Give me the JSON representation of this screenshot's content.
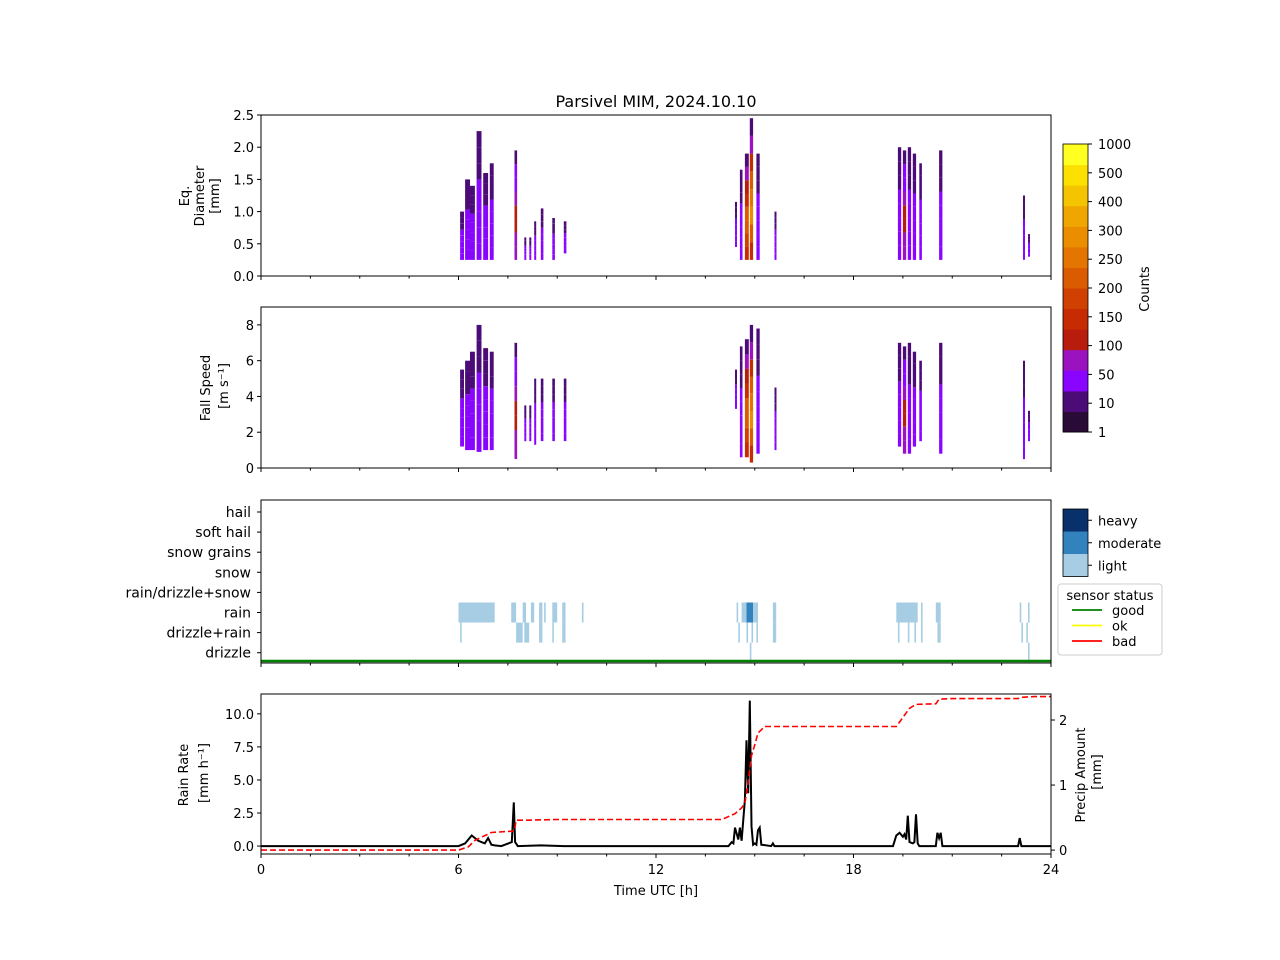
{
  "title": "Parsivel MIM, 2024.10.10",
  "x_axis": {
    "label": "Time UTC [h]",
    "ticks": [
      "0",
      "6",
      "12",
      "18",
      "24"
    ],
    "range": [
      0,
      24
    ]
  },
  "colorbar": {
    "label": "Counts",
    "ticks": [
      "1",
      "10",
      "50",
      "100",
      "150",
      "200",
      "250",
      "300",
      "400",
      "500",
      "1000"
    ],
    "colors": [
      "#2a0a36",
      "#4c0c78",
      "#8a05ff",
      "#9b12c0",
      "#b81c0c",
      "#c62b02",
      "#d04000",
      "#db5b00",
      "#e37500",
      "#ea8e00",
      "#efa600",
      "#f5c400",
      "#fbe000",
      "#ffff22"
    ]
  },
  "intensity_legend": {
    "labels": [
      "heavy",
      "moderate",
      "light"
    ],
    "colors": [
      "#08306b",
      "#3182bd",
      "#a6cde3"
    ]
  },
  "sensor_status_legend": {
    "title": "sensor status",
    "items": [
      {
        "label": "good",
        "color": "#008000"
      },
      {
        "label": "ok",
        "color": "#ffff00"
      },
      {
        "label": "bad",
        "color": "#ff0000"
      }
    ]
  },
  "chart_data": [
    {
      "type": "heatmap",
      "panel": "diameter",
      "ylabel": [
        "Eq.",
        "Diameter",
        "[mm]"
      ],
      "y_ticks": [
        "0.0",
        "0.5",
        "1.0",
        "1.5",
        "2.0",
        "2.5"
      ],
      "ylim": [
        0,
        2.5
      ],
      "xlim": [
        0,
        24
      ],
      "events": [
        {
          "t": 6.05,
          "w": 0.12,
          "lo": 0.25,
          "hi": 1.0,
          "peak": 10
        },
        {
          "t": 6.2,
          "w": 0.15,
          "lo": 0.25,
          "hi": 1.5,
          "peak": 10
        },
        {
          "t": 6.35,
          "w": 0.15,
          "lo": 0.25,
          "hi": 1.4,
          "peak": 10
        },
        {
          "t": 6.55,
          "w": 0.15,
          "lo": 0.25,
          "hi": 2.25,
          "peak": 10
        },
        {
          "t": 6.75,
          "w": 0.15,
          "lo": 0.25,
          "hi": 1.6,
          "peak": 10
        },
        {
          "t": 6.95,
          "w": 0.12,
          "lo": 0.25,
          "hi": 1.75,
          "peak": 10
        },
        {
          "t": 7.7,
          "w": 0.08,
          "lo": 0.25,
          "hi": 1.95,
          "peak": 50
        },
        {
          "t": 8.0,
          "w": 0.06,
          "lo": 0.25,
          "hi": 0.6,
          "peak": 10
        },
        {
          "t": 8.15,
          "w": 0.06,
          "lo": 0.25,
          "hi": 0.6,
          "peak": 10
        },
        {
          "t": 8.3,
          "w": 0.06,
          "lo": 0.25,
          "hi": 0.85,
          "peak": 10
        },
        {
          "t": 8.5,
          "w": 0.08,
          "lo": 0.25,
          "hi": 1.05,
          "peak": 10
        },
        {
          "t": 8.85,
          "w": 0.08,
          "lo": 0.25,
          "hi": 0.9,
          "peak": 10
        },
        {
          "t": 9.2,
          "w": 0.08,
          "lo": 0.35,
          "hi": 0.85,
          "peak": 10
        },
        {
          "t": 14.4,
          "w": 0.05,
          "lo": 0.45,
          "hi": 1.15,
          "peak": 10
        },
        {
          "t": 14.55,
          "w": 0.08,
          "lo": 0.25,
          "hi": 1.65,
          "peak": 10
        },
        {
          "t": 14.7,
          "w": 0.12,
          "lo": 0.25,
          "hi": 1.9,
          "peak": 300
        },
        {
          "t": 14.85,
          "w": 0.1,
          "lo": 0.25,
          "hi": 2.45,
          "peak": 500
        },
        {
          "t": 15.05,
          "w": 0.1,
          "lo": 0.25,
          "hi": 1.9,
          "peak": 10
        },
        {
          "t": 15.6,
          "w": 0.05,
          "lo": 0.25,
          "hi": 1.0,
          "peak": 10
        },
        {
          "t": 19.35,
          "w": 0.1,
          "lo": 0.25,
          "hi": 2.0,
          "peak": 10
        },
        {
          "t": 19.5,
          "w": 0.1,
          "lo": 0.25,
          "hi": 1.95,
          "peak": 50
        },
        {
          "t": 19.65,
          "w": 0.1,
          "lo": 0.25,
          "hi": 2.0,
          "peak": 10
        },
        {
          "t": 19.8,
          "w": 0.1,
          "lo": 0.25,
          "hi": 1.9,
          "peak": 10
        },
        {
          "t": 20.0,
          "w": 0.08,
          "lo": 0.25,
          "hi": 1.75,
          "peak": 10
        },
        {
          "t": 20.6,
          "w": 0.1,
          "lo": 0.25,
          "hi": 1.95,
          "peak": 10
        },
        {
          "t": 23.15,
          "w": 0.05,
          "lo": 0.25,
          "hi": 1.25,
          "peak": 10
        },
        {
          "t": 23.3,
          "w": 0.05,
          "lo": 0.3,
          "hi": 0.65,
          "peak": 10
        }
      ]
    },
    {
      "type": "heatmap",
      "panel": "fall_speed",
      "ylabel": [
        "Fall Speed",
        "[m s⁻¹]"
      ],
      "y_ticks": [
        "0",
        "2",
        "4",
        "6",
        "8"
      ],
      "ylim": [
        0,
        9
      ],
      "xlim": [
        0,
        24
      ],
      "events": [
        {
          "t": 6.05,
          "w": 0.12,
          "lo": 1.2,
          "hi": 5.5,
          "peak": 10
        },
        {
          "t": 6.2,
          "w": 0.15,
          "lo": 1.0,
          "hi": 6.0,
          "peak": 10
        },
        {
          "t": 6.35,
          "w": 0.15,
          "lo": 1.0,
          "hi": 6.5,
          "peak": 10
        },
        {
          "t": 6.55,
          "w": 0.15,
          "lo": 0.9,
          "hi": 8.0,
          "peak": 10
        },
        {
          "t": 6.75,
          "w": 0.15,
          "lo": 1.0,
          "hi": 6.7,
          "peak": 10
        },
        {
          "t": 6.95,
          "w": 0.12,
          "lo": 1.0,
          "hi": 6.5,
          "peak": 10
        },
        {
          "t": 7.7,
          "w": 0.08,
          "lo": 0.5,
          "hi": 7.0,
          "peak": 50
        },
        {
          "t": 8.0,
          "w": 0.06,
          "lo": 1.5,
          "hi": 3.5,
          "peak": 10
        },
        {
          "t": 8.15,
          "w": 0.06,
          "lo": 1.5,
          "hi": 3.5,
          "peak": 10
        },
        {
          "t": 8.3,
          "w": 0.06,
          "lo": 1.3,
          "hi": 5.0,
          "peak": 10
        },
        {
          "t": 8.5,
          "w": 0.08,
          "lo": 1.5,
          "hi": 5.0,
          "peak": 10
        },
        {
          "t": 8.85,
          "w": 0.08,
          "lo": 1.5,
          "hi": 5.0,
          "peak": 10
        },
        {
          "t": 9.2,
          "w": 0.08,
          "lo": 1.5,
          "hi": 5.0,
          "peak": 10
        },
        {
          "t": 14.4,
          "w": 0.05,
          "lo": 3.3,
          "hi": 5.5,
          "peak": 10
        },
        {
          "t": 14.55,
          "w": 0.08,
          "lo": 0.6,
          "hi": 6.8,
          "peak": 10
        },
        {
          "t": 14.7,
          "w": 0.12,
          "lo": 0.6,
          "hi": 7.2,
          "peak": 300
        },
        {
          "t": 14.85,
          "w": 0.1,
          "lo": 0.3,
          "hi": 8.0,
          "peak": 500
        },
        {
          "t": 15.05,
          "w": 0.1,
          "lo": 0.8,
          "hi": 7.8,
          "peak": 10
        },
        {
          "t": 15.6,
          "w": 0.05,
          "lo": 1.0,
          "hi": 4.5,
          "peak": 10
        },
        {
          "t": 19.35,
          "w": 0.1,
          "lo": 1.2,
          "hi": 7.0,
          "peak": 10
        },
        {
          "t": 19.5,
          "w": 0.1,
          "lo": 0.8,
          "hi": 6.8,
          "peak": 50
        },
        {
          "t": 19.65,
          "w": 0.1,
          "lo": 0.8,
          "hi": 7.0,
          "peak": 10
        },
        {
          "t": 19.8,
          "w": 0.1,
          "lo": 1.2,
          "hi": 6.5,
          "peak": 10
        },
        {
          "t": 20.0,
          "w": 0.08,
          "lo": 1.5,
          "hi": 6.0,
          "peak": 10
        },
        {
          "t": 20.6,
          "w": 0.1,
          "lo": 0.8,
          "hi": 7.0,
          "peak": 10
        },
        {
          "t": 23.15,
          "w": 0.05,
          "lo": 0.5,
          "hi": 6.0,
          "peak": 10
        },
        {
          "t": 23.3,
          "w": 0.05,
          "lo": 1.5,
          "hi": 3.2,
          "peak": 10
        }
      ]
    },
    {
      "type": "heatmap",
      "panel": "precip_type",
      "y_categories": [
        "hail",
        "soft hail",
        "snow grains",
        "snow",
        "rain/drizzle+snow",
        "rain",
        "drizzle+rain",
        "drizzle"
      ],
      "xlim": [
        0,
        24
      ],
      "rain": [
        [
          6.0,
          7.1,
          "light"
        ],
        [
          7.6,
          7.75,
          "light"
        ],
        [
          7.95,
          8.05,
          "light"
        ],
        [
          8.2,
          8.3,
          "light"
        ],
        [
          8.45,
          8.55,
          "light"
        ],
        [
          8.6,
          8.65,
          "light"
        ],
        [
          8.85,
          9.0,
          "light"
        ],
        [
          9.15,
          9.25,
          "light"
        ],
        [
          9.75,
          9.8,
          "light"
        ],
        [
          14.45,
          14.5,
          "light"
        ],
        [
          14.6,
          14.75,
          "light"
        ],
        [
          14.75,
          14.95,
          "moderate"
        ],
        [
          14.95,
          15.1,
          "light"
        ],
        [
          15.55,
          15.65,
          "light"
        ],
        [
          19.3,
          19.95,
          "light"
        ],
        [
          20.05,
          20.1,
          "light"
        ],
        [
          20.5,
          20.65,
          "light"
        ],
        [
          23.05,
          23.1,
          "light"
        ],
        [
          23.3,
          23.35,
          "light"
        ]
      ],
      "drizzle_rain": [
        [
          6.05,
          6.1,
          "light"
        ],
        [
          7.75,
          7.95,
          "light"
        ],
        [
          8.0,
          8.15,
          "light"
        ],
        [
          8.45,
          8.55,
          "light"
        ],
        [
          8.85,
          8.9,
          "light"
        ],
        [
          9.15,
          9.25,
          "light"
        ],
        [
          14.5,
          14.55,
          "light"
        ],
        [
          14.75,
          14.8,
          "light"
        ],
        [
          14.9,
          14.95,
          "light"
        ],
        [
          15.05,
          15.1,
          "light"
        ],
        [
          15.55,
          15.65,
          "light"
        ],
        [
          19.35,
          19.4,
          "light"
        ],
        [
          19.65,
          19.7,
          "light"
        ],
        [
          19.85,
          19.9,
          "light"
        ],
        [
          20.05,
          20.1,
          "light"
        ],
        [
          20.55,
          20.65,
          "light"
        ],
        [
          23.1,
          23.15,
          "light"
        ],
        [
          23.25,
          23.3,
          "light"
        ]
      ],
      "drizzle": [
        [
          14.85,
          14.9,
          "light"
        ],
        [
          23.3,
          23.35,
          "light"
        ]
      ],
      "sensor_status": [
        {
          "t_start": 0,
          "t_end": 24,
          "status": "good"
        }
      ]
    },
    {
      "type": "line",
      "panel": "rain_rate",
      "ylabel": [
        "Rain Rate",
        "[mm h⁻¹]"
      ],
      "y_ticks": [
        "0.0",
        "2.5",
        "5.0",
        "7.5",
        "10.0"
      ],
      "ylim": [
        -0.6,
        11.5
      ],
      "y2label": [
        "Precip Amount",
        "[mm]"
      ],
      "y2_ticks": [
        "0",
        "1",
        "2"
      ],
      "y2lim": [
        -0.06,
        2.4
      ],
      "xlim": [
        0,
        24
      ],
      "series": [
        {
          "color": "#000000",
          "x": [
            0,
            6.0,
            6.2,
            6.4,
            6.5,
            6.6,
            6.8,
            6.9,
            7.0,
            7.1,
            7.3,
            7.62,
            7.68,
            7.72,
            7.8,
            8.5,
            9.2,
            10.0,
            14.2,
            14.3,
            14.35,
            14.4,
            14.5,
            14.55,
            14.6,
            14.7,
            14.75,
            14.8,
            14.85,
            14.9,
            14.95,
            15.0,
            15.05,
            15.1,
            15.15,
            15.2,
            15.5,
            15.55,
            15.6,
            19.2,
            19.3,
            19.4,
            19.5,
            19.55,
            19.6,
            19.65,
            19.7,
            19.8,
            19.85,
            19.9,
            19.95,
            20.0,
            20.5,
            20.55,
            20.6,
            20.65,
            20.7,
            23.0,
            23.05,
            23.1,
            23.3,
            24
          ],
          "values": [
            0,
            0,
            0.2,
            0.8,
            0.6,
            0.4,
            0.2,
            0.6,
            0.1,
            0.05,
            0,
            0.3,
            3.3,
            0.3,
            0,
            0.05,
            0,
            0,
            0,
            0.3,
            0.2,
            1.4,
            0.5,
            1.4,
            0.4,
            3.5,
            8.0,
            4.0,
            11.0,
            1.5,
            0.1,
            0.2,
            0.1,
            1.2,
            1.4,
            0.1,
            0,
            0.2,
            0,
            0,
            0.8,
            1.0,
            0.7,
            0.9,
            0.5,
            2.3,
            0.3,
            0.2,
            0.3,
            2.4,
            0.2,
            0,
            0,
            1.0,
            0.6,
            1.0,
            0,
            0,
            0.6,
            0,
            0,
            0
          ]
        },
        {
          "color": "#ff0000",
          "axis": "right",
          "x": [
            0,
            6.0,
            6.3,
            6.5,
            7.0,
            7.6,
            7.7,
            7.75,
            8.0,
            9.0,
            10.0,
            14.0,
            14.4,
            14.6,
            14.7,
            14.8,
            14.9,
            15.0,
            15.1,
            15.2,
            15.3,
            19.3,
            19.4,
            19.7,
            19.9,
            20.5,
            20.6,
            21.0,
            23.0,
            23.1,
            23.5,
            24
          ],
          "values": [
            0,
            0,
            0.05,
            0.15,
            0.27,
            0.29,
            0.3,
            0.46,
            0.46,
            0.47,
            0.47,
            0.47,
            0.56,
            0.65,
            0.72,
            1.05,
            1.45,
            1.62,
            1.8,
            1.85,
            1.9,
            1.9,
            1.97,
            2.18,
            2.24,
            2.25,
            2.32,
            2.33,
            2.33,
            2.35,
            2.36,
            2.36
          ]
        }
      ]
    }
  ]
}
